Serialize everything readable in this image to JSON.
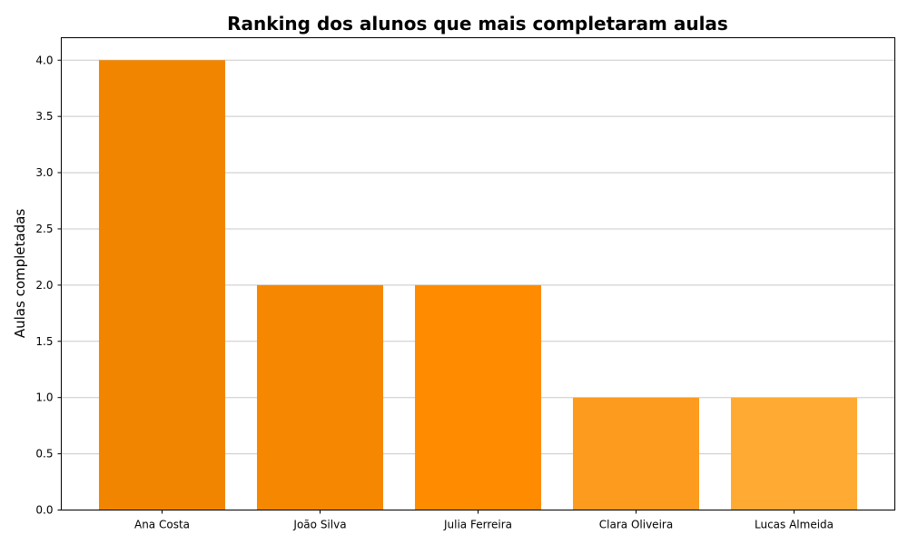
{
  "chart_data": {
    "type": "bar",
    "title": "Ranking dos alunos que mais completaram aulas",
    "xlabel": "",
    "ylabel": "Aulas completadas",
    "categories": [
      "Ana Costa",
      "João Silva",
      "Julia Ferreira",
      "Clara Oliveira",
      "Lucas Almeida"
    ],
    "values": [
      4,
      2,
      2,
      1,
      1
    ],
    "bar_colors": [
      "#f28500",
      "#f58800",
      "#ff8c00",
      "#fc9b1d",
      "#ffaa33"
    ],
    "ylim": [
      0,
      4.2
    ],
    "yticks": [
      "0.0",
      "0.5",
      "1.0",
      "1.5",
      "2.0",
      "2.5",
      "3.0",
      "3.5",
      "4.0"
    ],
    "grid": "y",
    "grid_color": "#c8c8c8"
  }
}
